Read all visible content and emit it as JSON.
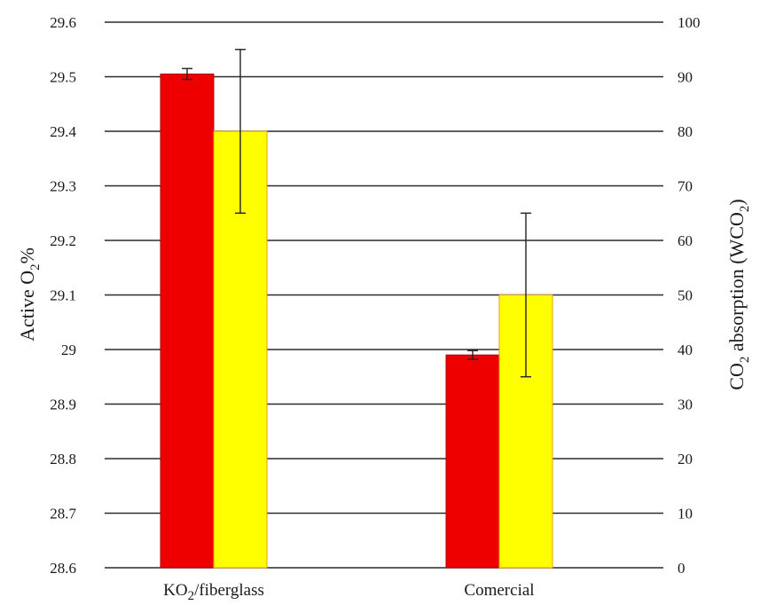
{
  "chart_data": {
    "type": "bar",
    "title": "",
    "categories": [
      "KO2/fiberglass",
      "Comercial"
    ],
    "category_labels": [
      {
        "main": "KO",
        "sub": "2",
        "rest": "/fiberglass"
      },
      {
        "main": "Comercial",
        "sub": "",
        "rest": ""
      }
    ],
    "series": [
      {
        "axis": "left",
        "color": "#ee0000",
        "values": [
          29.505,
          28.99
        ],
        "errors": [
          0.01,
          0.008
        ]
      },
      {
        "axis": "right",
        "color": "#ffff00",
        "edge_color": "#e8a000",
        "values": [
          80,
          50
        ],
        "errors": [
          15,
          15
        ]
      }
    ],
    "y_left": {
      "label": "Active O2%",
      "label_parts": {
        "main": "Active O",
        "sub": "2",
        "rest": "%"
      },
      "ylim": [
        28.6,
        29.6
      ],
      "ticks": [
        "28.6",
        "28.7",
        "28.8",
        "28.9",
        "29",
        "29.1",
        "29.2",
        "29.3",
        "29.4",
        "29.5",
        "29.6"
      ]
    },
    "y_right": {
      "label": "CO2 absorption (WCO2)",
      "label_parts": {
        "p1": "CO",
        "s1": "2",
        "p2": " absorption (WCO",
        "s2": "2",
        "p3": ")"
      },
      "ylim": [
        0,
        100
      ],
      "ticks": [
        "0",
        "10",
        "20",
        "30",
        "40",
        "50",
        "60",
        "70",
        "80",
        "90",
        "100"
      ]
    },
    "grid": true,
    "legend": "none"
  }
}
